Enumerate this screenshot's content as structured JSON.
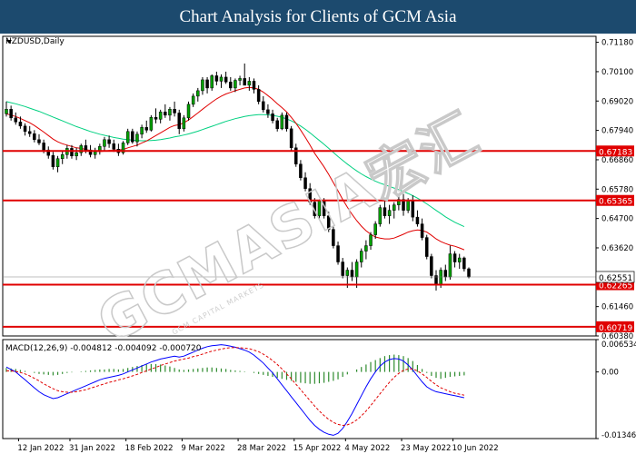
{
  "banner": {
    "title": "Chart Analysis for Clients of GCM Asia"
  },
  "watermark": {
    "text": "GCMASIA宏汇",
    "sub": "GCM CAPITAL MARKETS"
  },
  "chart_data": {
    "type": "candlestick",
    "symbol_label": "NZDUSD,Daily",
    "ylim": [
      0.6038,
      0.714
    ],
    "y_ticks": [
      "0.71180",
      "0.70100",
      "0.69020",
      "0.67940",
      "0.66860",
      "0.65780",
      "0.64700",
      "0.63620",
      "0.61460",
      "0.60380"
    ],
    "x_ticks": [
      "12 Jan 2022",
      "31 Jan 2022",
      "18 Feb 2022",
      "9 Mar 2022",
      "28 Mar 2022",
      "15 Apr 2022",
      "4 May 2022",
      "23 May 2022",
      "10 Jun 2022"
    ],
    "candles": [
      [
        0.6855,
        0.69,
        0.6845,
        0.6872
      ],
      [
        0.6872,
        0.6885,
        0.683,
        0.684
      ],
      [
        0.684,
        0.686,
        0.6815,
        0.6825
      ],
      [
        0.6825,
        0.6845,
        0.68,
        0.681
      ],
      [
        0.681,
        0.682,
        0.6775,
        0.679
      ],
      [
        0.679,
        0.681,
        0.677,
        0.6782
      ],
      [
        0.6782,
        0.6795,
        0.675,
        0.676
      ],
      [
        0.676,
        0.678,
        0.674,
        0.6748
      ],
      [
        0.6748,
        0.676,
        0.671,
        0.6722
      ],
      [
        0.6722,
        0.6735,
        0.669,
        0.6702
      ],
      [
        0.6702,
        0.6715,
        0.665,
        0.666
      ],
      [
        0.666,
        0.67,
        0.664,
        0.669
      ],
      [
        0.669,
        0.672,
        0.667,
        0.6705
      ],
      [
        0.6705,
        0.674,
        0.669,
        0.6728
      ],
      [
        0.6728,
        0.674,
        0.669,
        0.67
      ],
      [
        0.67,
        0.673,
        0.6685,
        0.6712
      ],
      [
        0.6712,
        0.6745,
        0.67,
        0.6738
      ],
      [
        0.6738,
        0.676,
        0.671,
        0.6722
      ],
      [
        0.6722,
        0.674,
        0.6695,
        0.6705
      ],
      [
        0.6705,
        0.673,
        0.669,
        0.6718
      ],
      [
        0.6718,
        0.6745,
        0.6705,
        0.6735
      ],
      [
        0.6735,
        0.677,
        0.672,
        0.676
      ],
      [
        0.676,
        0.6775,
        0.673,
        0.6745
      ],
      [
        0.6745,
        0.676,
        0.6715,
        0.6725
      ],
      [
        0.6725,
        0.6745,
        0.67,
        0.6712
      ],
      [
        0.6712,
        0.6755,
        0.6705,
        0.6748
      ],
      [
        0.6748,
        0.68,
        0.674,
        0.679
      ],
      [
        0.679,
        0.68,
        0.6745,
        0.6752
      ],
      [
        0.6752,
        0.679,
        0.6735,
        0.678
      ],
      [
        0.678,
        0.6815,
        0.6765,
        0.6805
      ],
      [
        0.6805,
        0.683,
        0.6785,
        0.6795
      ],
      [
        0.6795,
        0.685,
        0.679,
        0.6842
      ],
      [
        0.6842,
        0.6875,
        0.682,
        0.6835
      ],
      [
        0.6835,
        0.687,
        0.682,
        0.6862
      ],
      [
        0.6862,
        0.689,
        0.684,
        0.685
      ],
      [
        0.685,
        0.688,
        0.683,
        0.6872
      ],
      [
        0.6872,
        0.69,
        0.6845,
        0.6858
      ],
      [
        0.6858,
        0.687,
        0.678,
        0.68
      ],
      [
        0.68,
        0.685,
        0.679,
        0.684
      ],
      [
        0.684,
        0.69,
        0.683,
        0.689
      ],
      [
        0.689,
        0.693,
        0.688,
        0.692
      ],
      [
        0.692,
        0.695,
        0.69,
        0.694
      ],
      [
        0.694,
        0.699,
        0.6925,
        0.698
      ],
      [
        0.698,
        0.699,
        0.693,
        0.695
      ],
      [
        0.695,
        0.7,
        0.694,
        0.6995
      ],
      [
        0.6995,
        0.701,
        0.696,
        0.6975
      ],
      [
        0.6975,
        0.7,
        0.695,
        0.699
      ],
      [
        0.699,
        0.701,
        0.6965,
        0.6972
      ],
      [
        0.6972,
        0.699,
        0.694,
        0.695
      ],
      [
        0.695,
        0.6985,
        0.6935,
        0.6978
      ],
      [
        0.6978,
        0.6995,
        0.696,
        0.6985
      ],
      [
        0.6985,
        0.704,
        0.697,
        0.696
      ],
      [
        0.696,
        0.699,
        0.694,
        0.6975
      ],
      [
        0.6975,
        0.6985,
        0.693,
        0.6945
      ],
      [
        0.6945,
        0.696,
        0.689,
        0.69
      ],
      [
        0.69,
        0.692,
        0.686,
        0.687
      ],
      [
        0.687,
        0.689,
        0.684,
        0.6855
      ],
      [
        0.6855,
        0.687,
        0.682,
        0.683
      ],
      [
        0.683,
        0.684,
        0.679,
        0.68
      ],
      [
        0.68,
        0.686,
        0.6795,
        0.685
      ],
      [
        0.685,
        0.686,
        0.679,
        0.68
      ],
      [
        0.68,
        0.681,
        0.672,
        0.673
      ],
      [
        0.673,
        0.6745,
        0.666,
        0.667
      ],
      [
        0.667,
        0.6685,
        0.661,
        0.662
      ],
      [
        0.662,
        0.664,
        0.657,
        0.658
      ],
      [
        0.658,
        0.66,
        0.652,
        0.653
      ],
      [
        0.653,
        0.6545,
        0.647,
        0.648
      ],
      [
        0.648,
        0.654,
        0.647,
        0.6535
      ],
      [
        0.6535,
        0.6545,
        0.647,
        0.648
      ],
      [
        0.648,
        0.6495,
        0.642,
        0.643
      ],
      [
        0.643,
        0.644,
        0.636,
        0.637
      ],
      [
        0.637,
        0.6385,
        0.63,
        0.631
      ],
      [
        0.631,
        0.6325,
        0.625,
        0.626
      ],
      [
        0.626,
        0.629,
        0.6215,
        0.628
      ],
      [
        0.628,
        0.631,
        0.624,
        0.6255
      ],
      [
        0.6255,
        0.632,
        0.6215,
        0.631
      ],
      [
        0.631,
        0.636,
        0.629,
        0.635
      ],
      [
        0.635,
        0.639,
        0.632,
        0.637
      ],
      [
        0.637,
        0.642,
        0.6355,
        0.641
      ],
      [
        0.641,
        0.646,
        0.6395,
        0.645
      ],
      [
        0.645,
        0.652,
        0.644,
        0.651
      ],
      [
        0.651,
        0.654,
        0.647,
        0.648
      ],
      [
        0.648,
        0.652,
        0.645,
        0.65
      ],
      [
        0.65,
        0.653,
        0.647,
        0.652
      ],
      [
        0.652,
        0.656,
        0.65,
        0.654
      ],
      [
        0.654,
        0.656,
        0.648,
        0.65
      ],
      [
        0.65,
        0.6545,
        0.649,
        0.6535
      ],
      [
        0.6535,
        0.6555,
        0.646,
        0.6475
      ],
      [
        0.6475,
        0.65,
        0.644,
        0.645
      ],
      [
        0.645,
        0.647,
        0.639,
        0.64
      ],
      [
        0.64,
        0.641,
        0.632,
        0.633
      ],
      [
        0.633,
        0.634,
        0.625,
        0.626
      ],
      [
        0.626,
        0.628,
        0.6205,
        0.6225
      ],
      [
        0.6225,
        0.629,
        0.6215,
        0.628
      ],
      [
        0.628,
        0.63,
        0.624,
        0.6255
      ],
      [
        0.6255,
        0.637,
        0.6245,
        0.634
      ],
      [
        0.634,
        0.635,
        0.629,
        0.631
      ],
      [
        0.631,
        0.634,
        0.6285,
        0.6325
      ],
      [
        0.6325,
        0.633,
        0.6275,
        0.6285
      ],
      [
        0.6285,
        0.629,
        0.625,
        0.6255
      ]
    ],
    "ma_red": [
      0.6855,
      0.685,
      0.6845,
      0.6838,
      0.683,
      0.6822,
      0.6812,
      0.68,
      0.6788,
      0.6775,
      0.6762,
      0.6752,
      0.6745,
      0.674,
      0.6735,
      0.673,
      0.6728,
      0.6724,
      0.672,
      0.6718,
      0.6716,
      0.6718,
      0.672,
      0.6722,
      0.6722,
      0.6724,
      0.673,
      0.6735,
      0.674,
      0.6748,
      0.6755,
      0.6765,
      0.6775,
      0.6785,
      0.6795,
      0.6805,
      0.6812,
      0.6815,
      0.6822,
      0.6832,
      0.6845,
      0.6858,
      0.6872,
      0.6885,
      0.6898,
      0.691,
      0.692,
      0.6928,
      0.6934,
      0.694,
      0.6945,
      0.695,
      0.6952,
      0.695,
      0.6945,
      0.6935,
      0.6922,
      0.6908,
      0.6892,
      0.6878,
      0.6862,
      0.6842,
      0.682,
      0.6795,
      0.6768,
      0.674,
      0.671,
      0.6685,
      0.666,
      0.6632,
      0.6602,
      0.6572,
      0.654,
      0.6512,
      0.6485,
      0.6462,
      0.6442,
      0.6425,
      0.6412,
      0.6402,
      0.6398,
      0.6395,
      0.6395,
      0.6398,
      0.6405,
      0.6412,
      0.642,
      0.6425,
      0.6428,
      0.6426,
      0.642,
      0.6408,
      0.6395,
      0.6385,
      0.6378,
      0.6372,
      0.6368,
      0.6362,
      0.6355
    ],
    "ma_green": [
      0.69,
      0.6896,
      0.6892,
      0.6887,
      0.6882,
      0.6876,
      0.687,
      0.6864,
      0.6857,
      0.685,
      0.6843,
      0.6836,
      0.6829,
      0.6822,
      0.6815,
      0.6808,
      0.6802,
      0.6796,
      0.679,
      0.6785,
      0.678,
      0.6776,
      0.6772,
      0.6768,
      0.6765,
      0.6762,
      0.676,
      0.6758,
      0.6757,
      0.6756,
      0.6756,
      0.6757,
      0.6758,
      0.676,
      0.6763,
      0.6766,
      0.677,
      0.6773,
      0.6777,
      0.6781,
      0.6786,
      0.6791,
      0.6797,
      0.6803,
      0.6809,
      0.6815,
      0.6821,
      0.6827,
      0.6832,
      0.6837,
      0.6841,
      0.6845,
      0.6848,
      0.685,
      0.6852,
      0.6852,
      0.6851,
      0.6849,
      0.6846,
      0.6842,
      0.6836,
      0.6829,
      0.682,
      0.681,
      0.6798,
      0.6785,
      0.6771,
      0.6757,
      0.6743,
      0.6728,
      0.6713,
      0.6698,
      0.6684,
      0.667,
      0.6657,
      0.6645,
      0.6634,
      0.6624,
      0.6615,
      0.6607,
      0.66,
      0.6594,
      0.6588,
      0.6582,
      0.6576,
      0.6569,
      0.6562,
      0.6554,
      0.6545,
      0.6535,
      0.6524,
      0.6512,
      0.65,
      0.6488,
      0.6476,
      0.6466,
      0.6456,
      0.6448,
      0.644
    ],
    "levels": [
      {
        "value": 0.67183,
        "label": "0.67183"
      },
      {
        "value": 0.65365,
        "label": "0.65365"
      },
      {
        "value": 0.62265,
        "label": "0.62265"
      },
      {
        "value": 0.60719,
        "label": "0.60719"
      }
    ],
    "current_price": {
      "value": 0.62551,
      "label": "0.62551"
    },
    "macd": {
      "label": "MACD(12,26,9) -0.004812 -0.004092 -0.000720",
      "ylim": [
        -0.013464,
        0.006534
      ],
      "y_ticks": [
        "0.006534",
        "0.00",
        "-0.013464"
      ],
      "hist": [
        0.0008,
        0.0007,
        0.0006,
        0.0004,
        0.0002,
        0.0,
        -0.0002,
        -0.0004,
        -0.0005,
        -0.0006,
        -0.0007,
        -0.0006,
        -0.0004,
        -0.0002,
        -0.0001,
        0.0,
        0.0001,
        0.0002,
        0.0003,
        0.0004,
        0.0005,
        0.0005,
        0.0006,
        0.0006,
        0.0005,
        0.0006,
        0.0008,
        0.001,
        0.0012,
        0.0014,
        0.0015,
        0.0016,
        0.0016,
        0.0015,
        0.0013,
        0.0011,
        0.0008,
        0.0005,
        0.0004,
        0.0005,
        0.0006,
        0.0007,
        0.0008,
        0.0009,
        0.0009,
        0.0008,
        0.0007,
        0.0006,
        0.0004,
        0.0003,
        0.0002,
        0.0001,
        0.0,
        -0.0002,
        -0.0004,
        -0.0006,
        -0.0008,
        -0.001,
        -0.0012,
        -0.0014,
        -0.0016,
        -0.0018,
        -0.002,
        -0.0022,
        -0.0023,
        -0.0024,
        -0.0024,
        -0.0023,
        -0.0022,
        -0.002,
        -0.0018,
        -0.0015,
        -0.001,
        -0.0005,
        0.0,
        0.0005,
        0.001,
        0.0015,
        0.002,
        0.0024,
        0.0028,
        0.0032,
        0.0034,
        0.0035,
        0.0034,
        0.0032,
        0.0028,
        0.0022,
        0.0014,
        0.0006,
        -0.0002,
        -0.0008,
        -0.0012,
        -0.0014,
        -0.0012,
        -0.001,
        -0.0009,
        -0.0008,
        -0.0007
      ],
      "macd_line": [
        0.001,
        0.0005,
        0.0,
        -0.0008,
        -0.0016,
        -0.0024,
        -0.0032,
        -0.004,
        -0.0046,
        -0.005,
        -0.0054,
        -0.0052,
        -0.0048,
        -0.0044,
        -0.004,
        -0.0036,
        -0.0032,
        -0.0028,
        -0.0024,
        -0.002,
        -0.0016,
        -0.0013,
        -0.0011,
        -0.0009,
        -0.0007,
        -0.0004,
        0.0,
        0.0004,
        0.0008,
        0.0012,
        0.0016,
        0.002,
        0.0023,
        0.0026,
        0.0028,
        0.003,
        0.0032,
        0.003,
        0.0032,
        0.0036,
        0.004,
        0.0044,
        0.0048,
        0.0051,
        0.0053,
        0.0054,
        0.0055,
        0.0054,
        0.0052,
        0.005,
        0.0047,
        0.0044,
        0.004,
        0.0034,
        0.0026,
        0.0018,
        0.0008,
        -0.0002,
        -0.0014,
        -0.0026,
        -0.0038,
        -0.005,
        -0.0062,
        -0.0074,
        -0.0086,
        -0.0098,
        -0.0108,
        -0.0116,
        -0.0122,
        -0.0126,
        -0.0128,
        -0.0124,
        -0.0114,
        -0.01,
        -0.0084,
        -0.0066,
        -0.0048,
        -0.003,
        -0.0014,
        0.0,
        0.0012,
        0.002,
        0.0025,
        0.0027,
        0.0026,
        0.0022,
        0.0014,
        0.0004,
        -0.0008,
        -0.002,
        -0.003,
        -0.0036,
        -0.004,
        -0.0042,
        -0.0044,
        -0.0046,
        -0.0048,
        -0.005,
        -0.0052
      ],
      "signal_line": [
        0.0002,
        0.0002,
        0.0001,
        -0.0001,
        -0.0004,
        -0.0008,
        -0.0013,
        -0.0018,
        -0.0024,
        -0.0029,
        -0.0034,
        -0.0038,
        -0.004,
        -0.0041,
        -0.0041,
        -0.004,
        -0.0038,
        -0.0036,
        -0.0033,
        -0.003,
        -0.0027,
        -0.0024,
        -0.0021,
        -0.0019,
        -0.0016,
        -0.0014,
        -0.0011,
        -0.0008,
        -0.0005,
        -0.0001,
        0.0002,
        0.0006,
        0.0009,
        0.0013,
        0.0016,
        0.0019,
        0.0022,
        0.0024,
        0.0026,
        0.0028,
        0.0031,
        0.0033,
        0.0036,
        0.0039,
        0.0042,
        0.0044,
        0.0046,
        0.0048,
        0.0049,
        0.0049,
        0.0049,
        0.0048,
        0.0047,
        0.0044,
        0.0041,
        0.0036,
        0.003,
        0.0023,
        0.0015,
        0.0006,
        -0.0004,
        -0.0014,
        -0.0025,
        -0.0036,
        -0.0047,
        -0.0058,
        -0.0069,
        -0.0079,
        -0.0088,
        -0.0096,
        -0.0102,
        -0.0106,
        -0.0108,
        -0.0107,
        -0.0103,
        -0.0097,
        -0.0089,
        -0.0079,
        -0.0068,
        -0.0056,
        -0.0044,
        -0.0032,
        -0.0021,
        -0.0011,
        -0.0003,
        0.0003,
        0.0006,
        0.0006,
        0.0002,
        -0.0004,
        -0.0011,
        -0.0019,
        -0.0026,
        -0.0032,
        -0.0036,
        -0.004,
        -0.0043,
        -0.0045,
        -0.0047
      ]
    },
    "colors": {
      "up": "#00a000",
      "down": "#000000",
      "ma_red": "#e00000",
      "ma_green": "#00d080",
      "levels": "#e00000",
      "macd_line": "#0000ff",
      "signal_line": "#e00000"
    }
  }
}
